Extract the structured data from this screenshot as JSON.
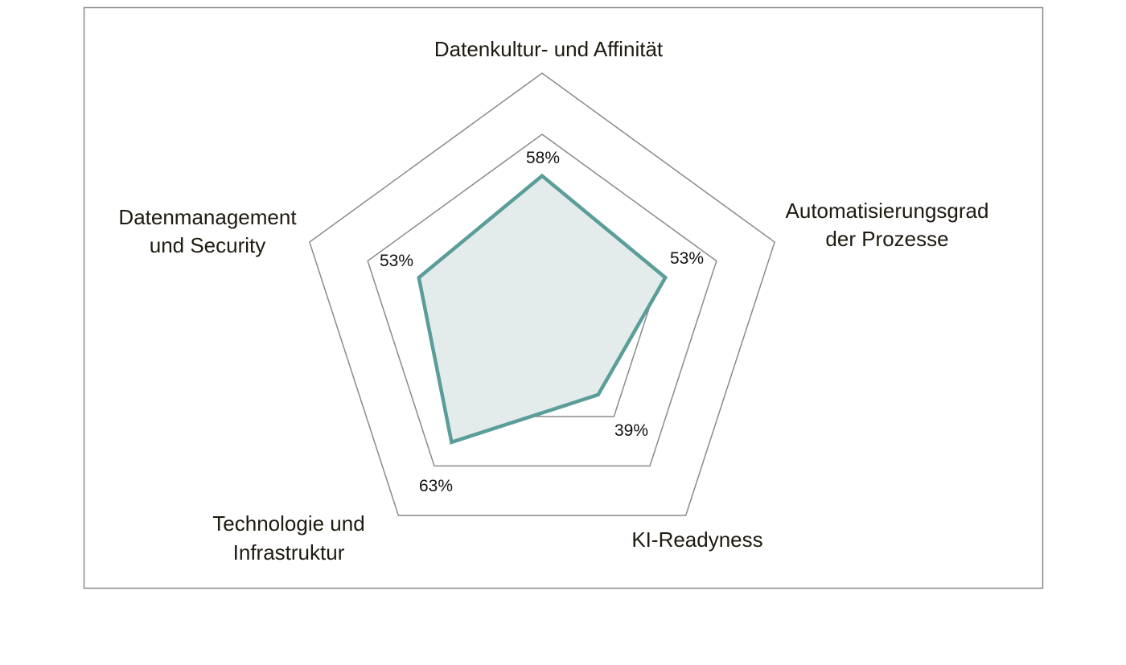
{
  "chart_data": {
    "type": "radar",
    "title": "",
    "categories": [
      "Datenkultur- und Affinität",
      "Automatisierungsgrad der Prozesse",
      "KI-Readyness",
      "Technologie und Infrastruktur",
      "Datenmanagement und Security"
    ],
    "category_lines": [
      [
        "Datenkultur- und Affinität"
      ],
      [
        "Automatisierungsgrad",
        "der Prozesse"
      ],
      [
        "KI-Readyness"
      ],
      [
        "Technologie und",
        "Infrastruktur"
      ],
      [
        "Datenmanagement",
        "und Security"
      ]
    ],
    "values": [
      58,
      53,
      39,
      63,
      53
    ],
    "value_labels": [
      "58%",
      "53%",
      "39%",
      "63%",
      "53%"
    ],
    "range": [
      0,
      100
    ],
    "grid_rings": [
      50,
      75,
      100
    ],
    "legend": "none",
    "colors": {
      "series_stroke": "#5b9e99",
      "series_fill": "#e3ecea",
      "grid": "#8a8a8a",
      "frame": "#8a8a8a",
      "text": "#1e1a10"
    }
  }
}
